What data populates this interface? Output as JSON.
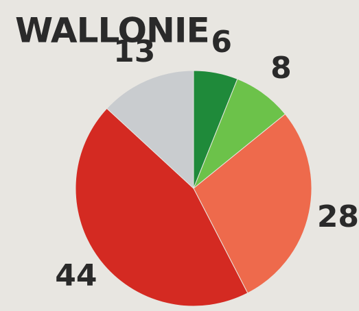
{
  "chart_data": {
    "type": "pie",
    "title": "WALLONIE",
    "categories": [
      null,
      null,
      null,
      null,
      null
    ],
    "values": [
      6,
      8,
      28,
      44,
      13
    ],
    "colors": [
      "#1f8a3a",
      "#6cc24a",
      "#ee6a4c",
      "#d42a22",
      "#c9cccf"
    ]
  }
}
